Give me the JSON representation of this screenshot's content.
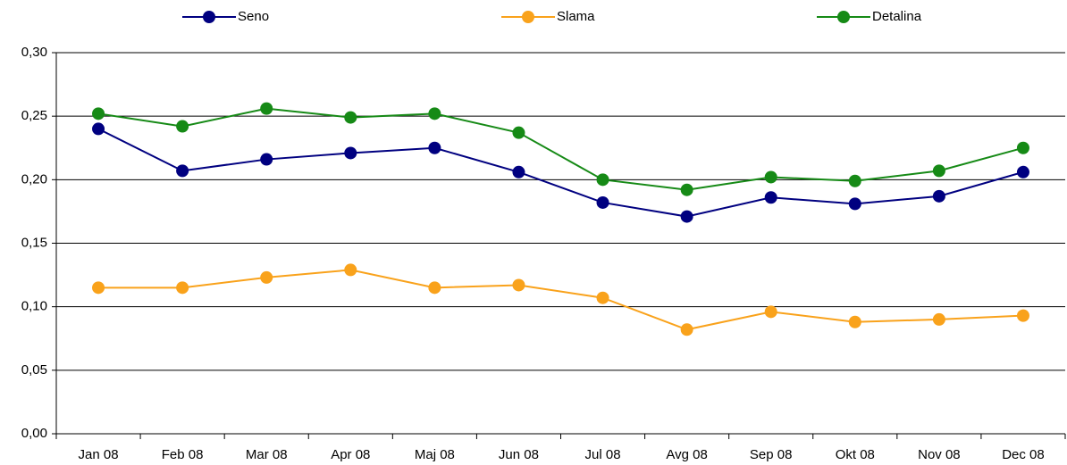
{
  "chart_data": {
    "type": "line",
    "categories": [
      "Jan 08",
      "Feb 08",
      "Mar 08",
      "Apr 08",
      "Maj 08",
      "Jun 08",
      "Jul 08",
      "Avg 08",
      "Sep 08",
      "Okt 08",
      "Nov 08",
      "Dec 08"
    ],
    "series": [
      {
        "name": "Seno",
        "color": "#000080",
        "values": [
          0.24,
          0.207,
          0.216,
          0.221,
          0.225,
          0.206,
          0.182,
          0.171,
          0.186,
          0.181,
          0.187,
          0.206
        ]
      },
      {
        "name": "Slama",
        "color": "#f9a21b",
        "values": [
          0.115,
          0.115,
          0.123,
          0.129,
          0.115,
          0.117,
          0.107,
          0.082,
          0.096,
          0.088,
          0.09,
          0.093
        ]
      },
      {
        "name": "Detalina",
        "color": "#168a16",
        "values": [
          0.252,
          0.242,
          0.256,
          0.249,
          0.252,
          0.237,
          0.2,
          0.192,
          0.202,
          0.199,
          0.207,
          0.225
        ]
      }
    ],
    "ylim": [
      0,
      0.3
    ],
    "yticks": [
      {
        "value": 0,
        "label": "0,00"
      },
      {
        "value": 0.05,
        "label": "0,05"
      },
      {
        "value": 0.1,
        "label": "0,10"
      },
      {
        "value": 0.15,
        "label": "0,15"
      },
      {
        "value": 0.2,
        "label": "0,20"
      },
      {
        "value": 0.25,
        "label": "0,25"
      },
      {
        "value": 0.3,
        "label": "0,30"
      }
    ],
    "grid": true,
    "legend": "top"
  }
}
